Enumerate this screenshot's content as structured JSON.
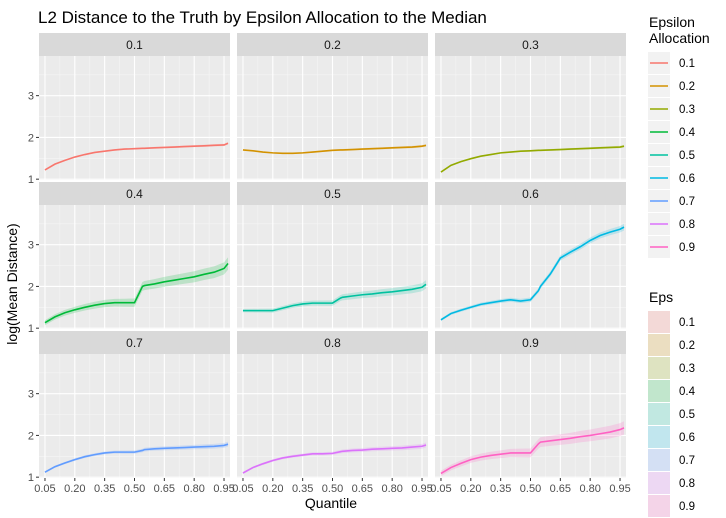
{
  "chart_data": {
    "type": "line",
    "title": "L2 Distance to the Truth by Epsilon Allocation to the Median",
    "xlabel": "Quantile",
    "ylabel": "log(Mean Distance)",
    "facet_labels": [
      "0.1",
      "0.2",
      "0.3",
      "0.4",
      "0.5",
      "0.6",
      "0.7",
      "0.8",
      "0.9"
    ],
    "x_ticks": [
      "0.05",
      "0.20",
      "0.35",
      "0.50",
      "0.65",
      "0.80",
      "0.95"
    ],
    "x_tick_values": [
      0.05,
      0.2,
      0.35,
      0.5,
      0.65,
      0.8,
      0.95
    ],
    "xlim": [
      0.02,
      0.98
    ],
    "y_ticks": [
      "1",
      "2",
      "3"
    ],
    "y_tick_values": [
      1,
      2,
      3
    ],
    "ylim": [
      0.98,
      3.95
    ],
    "grid": true,
    "legend_position": "right",
    "legend_color_title": "Epsilon Allocation",
    "legend_fill_title": "Eps",
    "legend_labels": [
      "0.1",
      "0.2",
      "0.3",
      "0.4",
      "0.5",
      "0.6",
      "0.7",
      "0.8",
      "0.9"
    ],
    "colors": [
      "#F8766D",
      "#D39200",
      "#93AA00",
      "#00BA38",
      "#00C19F",
      "#00B9E3",
      "#619CFF",
      "#DB72FB",
      "#FF61C3"
    ],
    "x": [
      0.05,
      0.1,
      0.15,
      0.2,
      0.25,
      0.3,
      0.35,
      0.4,
      0.45,
      0.5,
      0.54,
      0.55,
      0.6,
      0.65,
      0.7,
      0.75,
      0.8,
      0.85,
      0.9,
      0.95,
      0.97
    ],
    "series": [
      {
        "name": "0.1",
        "values": [
          1.22,
          1.36,
          1.45,
          1.53,
          1.59,
          1.64,
          1.67,
          1.7,
          1.72,
          1.73,
          1.74,
          1.74,
          1.75,
          1.76,
          1.77,
          1.78,
          1.79,
          1.8,
          1.81,
          1.82,
          1.86
        ],
        "band": 0.03
      },
      {
        "name": "0.2",
        "values": [
          1.7,
          1.68,
          1.65,
          1.63,
          1.62,
          1.62,
          1.63,
          1.65,
          1.67,
          1.69,
          1.7,
          1.7,
          1.71,
          1.72,
          1.73,
          1.74,
          1.75,
          1.76,
          1.77,
          1.79,
          1.81
        ],
        "band": 0.03
      },
      {
        "name": "0.3",
        "values": [
          1.17,
          1.33,
          1.42,
          1.49,
          1.55,
          1.59,
          1.63,
          1.65,
          1.67,
          1.68,
          1.69,
          1.69,
          1.7,
          1.71,
          1.72,
          1.73,
          1.74,
          1.75,
          1.76,
          1.77,
          1.79
        ],
        "band": 0.03
      },
      {
        "name": "0.4",
        "values": [
          1.13,
          1.27,
          1.37,
          1.44,
          1.5,
          1.55,
          1.59,
          1.61,
          1.61,
          1.61,
          2.0,
          2.02,
          2.06,
          2.11,
          2.15,
          2.19,
          2.23,
          2.29,
          2.34,
          2.43,
          2.55
        ],
        "band": 0.15
      },
      {
        "name": "0.5",
        "values": [
          1.42,
          1.42,
          1.42,
          1.42,
          1.48,
          1.54,
          1.58,
          1.6,
          1.6,
          1.6,
          1.72,
          1.74,
          1.77,
          1.8,
          1.82,
          1.85,
          1.87,
          1.9,
          1.93,
          1.98,
          2.05
        ],
        "band": 0.1
      },
      {
        "name": "0.6",
        "values": [
          1.2,
          1.35,
          1.43,
          1.5,
          1.57,
          1.61,
          1.65,
          1.68,
          1.65,
          1.68,
          1.9,
          2.0,
          2.3,
          2.68,
          2.82,
          2.95,
          3.1,
          3.22,
          3.3,
          3.37,
          3.42
        ],
        "band": 0.08
      },
      {
        "name": "0.7",
        "values": [
          1.12,
          1.25,
          1.34,
          1.42,
          1.49,
          1.54,
          1.58,
          1.6,
          1.6,
          1.6,
          1.64,
          1.66,
          1.68,
          1.69,
          1.7,
          1.71,
          1.72,
          1.73,
          1.74,
          1.76,
          1.79
        ],
        "band": 0.06
      },
      {
        "name": "0.8",
        "values": [
          1.1,
          1.23,
          1.32,
          1.4,
          1.46,
          1.5,
          1.53,
          1.56,
          1.56,
          1.57,
          1.61,
          1.62,
          1.64,
          1.65,
          1.67,
          1.68,
          1.69,
          1.7,
          1.72,
          1.74,
          1.77
        ],
        "band": 0.06
      },
      {
        "name": "0.9",
        "values": [
          1.09,
          1.23,
          1.33,
          1.42,
          1.48,
          1.52,
          1.55,
          1.58,
          1.58,
          1.58,
          1.8,
          1.84,
          1.87,
          1.9,
          1.93,
          1.97,
          2.0,
          2.04,
          2.08,
          2.14,
          2.18
        ],
        "band": 0.16
      }
    ]
  }
}
